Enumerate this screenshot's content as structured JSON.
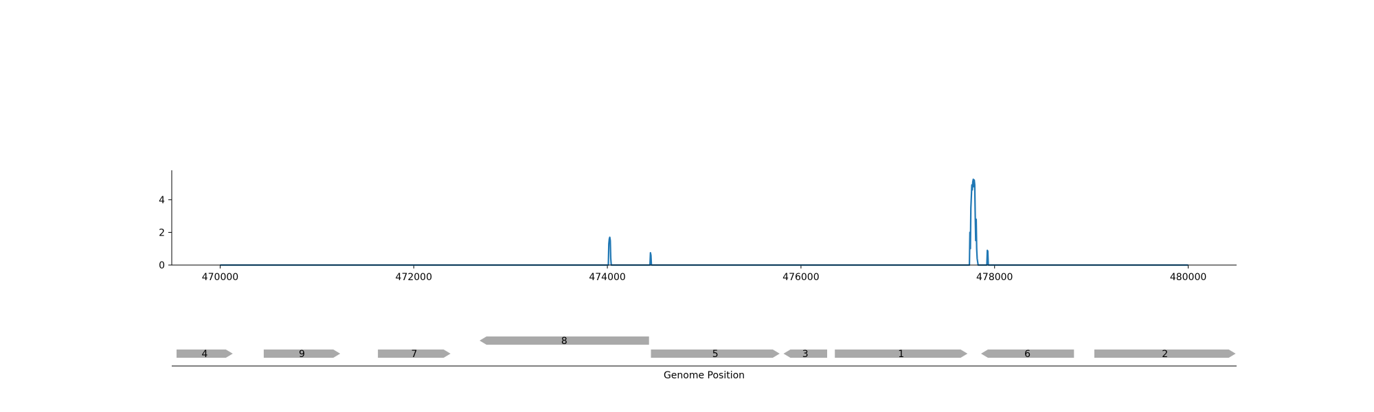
{
  "chart_data": [
    {
      "type": "line",
      "title": "",
      "xlabel": "",
      "ylabel": "",
      "xlim": [
        469500,
        480500
      ],
      "ylim": [
        0,
        5.8
      ],
      "grid": false,
      "color": "#1f77b4",
      "x_ticks": [
        470000,
        472000,
        474000,
        476000,
        478000,
        480000
      ],
      "x_tick_labels": [
        "470000",
        "472000",
        "474000",
        "476000",
        "478000",
        "480000"
      ],
      "y_ticks": [
        0,
        2,
        4
      ],
      "y_tick_labels": [
        "0",
        "2",
        "4"
      ],
      "series": [
        {
          "x": [
            470000,
            474010,
            474015,
            474020,
            474025,
            474030,
            474035,
            474040,
            474440,
            474445,
            474450,
            474455,
            477740,
            477745,
            477750,
            477755,
            477760,
            477765,
            477770,
            477775,
            477780,
            477785,
            477790,
            477795,
            477800,
            477805,
            477810,
            477815,
            477820,
            477825,
            477830,
            477920,
            477925,
            477930,
            477935,
            480000
          ],
          "y": [
            0,
            0,
            1.3,
            1.6,
            1.7,
            1.5,
            0.4,
            0,
            0,
            0.75,
            0.6,
            0,
            0,
            2.0,
            1.0,
            3.5,
            4.2,
            4.9,
            4.6,
            5.1,
            5.25,
            4.8,
            5.2,
            4.9,
            3.0,
            1.5,
            2.8,
            1.0,
            0.4,
            0.2,
            0,
            0,
            0.9,
            0.85,
            0,
            0
          ]
        }
      ]
    },
    {
      "type": "gene-track",
      "xlabel": "Genome Position",
      "color": "#a9a9a9",
      "genes": [
        {
          "label": "4",
          "start": 469550,
          "end": 470130,
          "strand": 1,
          "row": 0
        },
        {
          "label": "9",
          "start": 470450,
          "end": 471240,
          "strand": 1,
          "row": 0
        },
        {
          "label": "7",
          "start": 471630,
          "end": 472380,
          "strand": 1,
          "row": 0
        },
        {
          "label": "8",
          "start": 472680,
          "end": 474430,
          "strand": -1,
          "row": 1
        },
        {
          "label": "5",
          "start": 474450,
          "end": 475780,
          "strand": 1,
          "row": 0
        },
        {
          "label": "3",
          "start": 475820,
          "end": 476270,
          "strand": -1,
          "row": 0
        },
        {
          "label": "1",
          "start": 476350,
          "end": 477720,
          "strand": 1,
          "row": 0
        },
        {
          "label": "6",
          "start": 477860,
          "end": 478820,
          "strand": -1,
          "row": 0
        },
        {
          "label": "2",
          "start": 479030,
          "end": 480490,
          "strand": 1,
          "row": 0
        }
      ]
    }
  ]
}
